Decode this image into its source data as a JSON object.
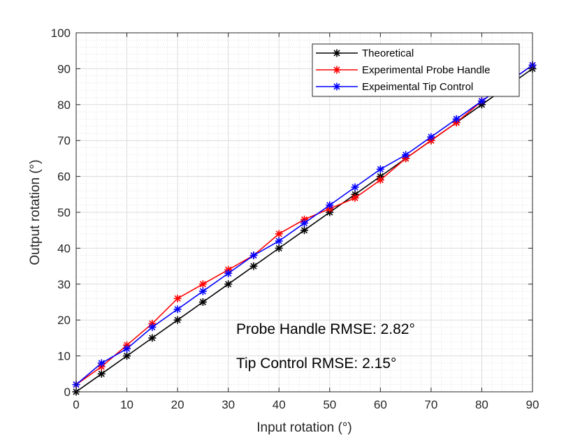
{
  "chart_data": {
    "type": "line",
    "title": "",
    "xlabel": "Input rotation (°)",
    "ylabel": "Output rotation (°)",
    "xlim": [
      0,
      90
    ],
    "ylim": [
      0,
      100
    ],
    "x_ticks": [
      0,
      10,
      20,
      30,
      40,
      50,
      60,
      70,
      80,
      90
    ],
    "y_ticks": [
      0,
      10,
      20,
      30,
      40,
      50,
      60,
      70,
      80,
      90,
      100
    ],
    "grid": "major and minor",
    "legend_position": "top-right",
    "marker": "asterisk",
    "x": [
      0,
      5,
      10,
      15,
      20,
      25,
      30,
      35,
      40,
      45,
      50,
      55,
      60,
      65,
      70,
      75,
      80,
      85,
      90
    ],
    "series": [
      {
        "name": "Theoretical",
        "color": "#000000",
        "values": [
          0,
          5,
          10,
          15,
          20,
          25,
          30,
          35,
          40,
          45,
          50,
          55,
          60,
          65,
          70,
          75,
          80,
          85,
          90
        ]
      },
      {
        "name": "Experimental Probe Handle",
        "color": "#ff0000",
        "values": [
          2,
          7,
          13,
          19,
          26,
          30,
          34,
          38,
          44,
          48,
          51,
          54,
          59,
          65,
          70,
          75,
          81,
          86,
          91
        ]
      },
      {
        "name": "Expeimental Tip Control",
        "color": "#0000ff",
        "values": [
          2,
          8,
          12,
          18,
          23,
          28,
          33,
          38,
          42,
          47,
          52,
          57,
          62,
          66,
          71,
          76,
          81,
          86,
          91
        ]
      }
    ],
    "annotations": [
      "Probe Handle RMSE: 2.82°",
      "Tip Control RMSE: 2.15°"
    ]
  }
}
